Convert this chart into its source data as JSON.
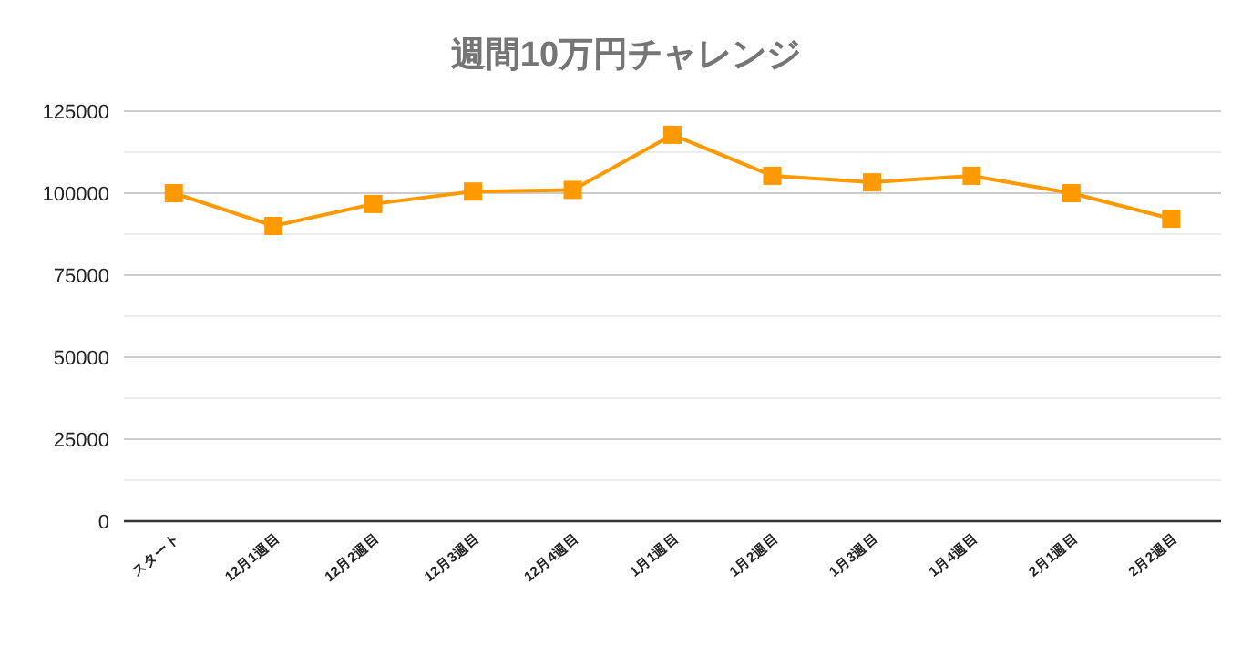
{
  "chart_data": {
    "type": "line",
    "title": "週間10万円チャレンジ",
    "categories": [
      "スタート",
      "12月1週目",
      "12月2週目",
      "12月3週目",
      "12月4週目",
      "1月1週目",
      "1月2週目",
      "1月3週目",
      "1月4週目",
      "2月1週目",
      "2月2週目"
    ],
    "series": [
      {
        "color": "#ff9900",
        "values": [
          100000,
          90000,
          96700,
          100500,
          101000,
          117800,
          105300,
          103300,
          105300,
          100000,
          92200
        ]
      }
    ],
    "ylim": [
      0,
      125000
    ],
    "yticks": [
      0,
      {
        "value": 12500,
        "label": null
      },
      25000,
      {
        "value": 37500,
        "label": null
      },
      50000,
      {
        "value": 62500,
        "label": null
      },
      75000,
      {
        "value": 87500,
        "label": null
      },
      100000,
      {
        "value": 112500,
        "label": null
      },
      125000
    ],
    "grid": "y",
    "marker": "square",
    "line_style": "solid"
  }
}
